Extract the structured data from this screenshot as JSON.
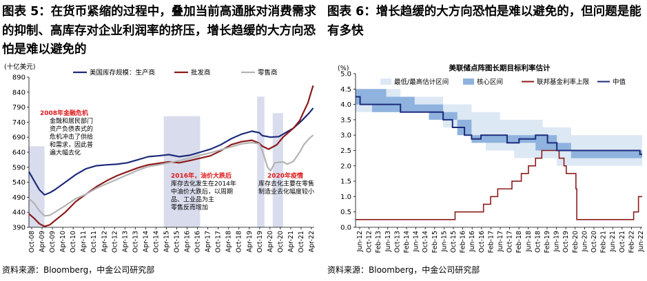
{
  "panels": [
    {
      "title": "图表 5：在货币紧缩的过程中，叠加当前高通胀对消费需求的抑制、高库存对企业利润率的挤压，增长趋缓的大方向恐怕是难以避免的",
      "source": "资料来源：Bloomberg，中金公司研究部"
    },
    {
      "title": "图表 6：增长趋缓的大方向恐怕是难以避免的，但问题是能有多快",
      "source": "资料来源：Bloomberg，中金公司研究部"
    }
  ],
  "colors": {
    "navy": "#1c2a7a",
    "maroon": "#8b1a1a",
    "gray": "#b3b3b3",
    "shade": "#d9dcec",
    "lightBand": "#dde8f5",
    "darkBand": "#8fb3de",
    "red": "#e0191b"
  },
  "chart_data": [
    {
      "type": "line",
      "ylabel": "(十亿美元)",
      "ylim": [
        390,
        890
      ],
      "yticks": [
        390,
        440,
        490,
        540,
        590,
        640,
        690,
        740,
        790,
        840,
        890
      ],
      "xticks": [
        "Oct-08",
        "Apr-09",
        "Oct-09",
        "Apr-10",
        "Oct-10",
        "Apr-11",
        "Oct-11",
        "Apr-12",
        "Oct-12",
        "Apr-13",
        "Oct-13",
        "Apr-14",
        "Oct-14",
        "Apr-15",
        "Oct-15",
        "Apr-16",
        "Oct-16",
        "Apr-17",
        "Oct-17",
        "Apr-18",
        "Oct-18",
        "Apr-19",
        "Oct-19",
        "Apr-20",
        "Oct-20",
        "Apr-21",
        "Oct-21",
        "Apr-22"
      ],
      "xlim": [
        2008.75,
        2022.5
      ],
      "shaded_periods": [
        [
          2008.75,
          2009.5
        ],
        [
          2015.25,
          2017.0
        ],
        [
          2019.75,
          2020.1
        ],
        [
          2020.5,
          2021.0
        ]
      ],
      "series": [
        {
          "name": "美国库存规模：生产商",
          "color": "navy",
          "points": [
            [
              2008.75,
              575
            ],
            [
              2009.0,
              545
            ],
            [
              2009.25,
              515
            ],
            [
              2009.5,
              498
            ],
            [
              2009.75,
              505
            ],
            [
              2010.0,
              515
            ],
            [
              2010.5,
              540
            ],
            [
              2011.0,
              565
            ],
            [
              2011.5,
              585
            ],
            [
              2012.0,
              595
            ],
            [
              2012.5,
              598
            ],
            [
              2013.0,
              600
            ],
            [
              2013.5,
              605
            ],
            [
              2014.0,
              615
            ],
            [
              2014.5,
              625
            ],
            [
              2015.0,
              628
            ],
            [
              2015.5,
              632
            ],
            [
              2016.0,
              625
            ],
            [
              2016.5,
              630
            ],
            [
              2017.0,
              640
            ],
            [
              2017.5,
              650
            ],
            [
              2018.0,
              665
            ],
            [
              2018.5,
              685
            ],
            [
              2019.0,
              700
            ],
            [
              2019.5,
              710
            ],
            [
              2019.85,
              705
            ],
            [
              2020.0,
              695
            ],
            [
              2020.4,
              690
            ],
            [
              2020.8,
              692
            ],
            [
              2021.0,
              700
            ],
            [
              2021.5,
              720
            ],
            [
              2021.9,
              745
            ],
            [
              2022.25,
              770
            ],
            [
              2022.45,
              787
            ]
          ]
        },
        {
          "name": "批发商",
          "color": "maroon",
          "points": [
            [
              2008.75,
              435
            ],
            [
              2009.0,
              420
            ],
            [
              2009.25,
              402
            ],
            [
              2009.5,
              393
            ],
            [
              2009.75,
              398
            ],
            [
              2010.0,
              412
            ],
            [
              2010.5,
              440
            ],
            [
              2011.0,
              475
            ],
            [
              2011.5,
              500
            ],
            [
              2012.0,
              525
            ],
            [
              2012.5,
              545
            ],
            [
              2013.0,
              562
            ],
            [
              2013.5,
              575
            ],
            [
              2014.0,
              588
            ],
            [
              2014.5,
              598
            ],
            [
              2015.0,
              603
            ],
            [
              2015.5,
              608
            ],
            [
              2016.0,
              605
            ],
            [
              2016.5,
              612
            ],
            [
              2017.0,
              620
            ],
            [
              2017.5,
              628
            ],
            [
              2018.0,
              645
            ],
            [
              2018.5,
              665
            ],
            [
              2019.0,
              675
            ],
            [
              2019.5,
              680
            ],
            [
              2019.85,
              670
            ],
            [
              2020.0,
              660
            ],
            [
              2020.3,
              650
            ],
            [
              2020.7,
              665
            ],
            [
              2021.0,
              690
            ],
            [
              2021.5,
              720
            ],
            [
              2021.8,
              745
            ],
            [
              2022.0,
              775
            ],
            [
              2022.2,
              805
            ],
            [
              2022.35,
              840
            ],
            [
              2022.45,
              862
            ]
          ]
        },
        {
          "name": "零售商",
          "color": "gray",
          "points": [
            [
              2008.75,
              485
            ],
            [
              2009.0,
              470
            ],
            [
              2009.25,
              445
            ],
            [
              2009.5,
              428
            ],
            [
              2009.75,
              430
            ],
            [
              2010.0,
              440
            ],
            [
              2010.5,
              462
            ],
            [
              2011.0,
              485
            ],
            [
              2011.5,
              500
            ],
            [
              2012.0,
              520
            ],
            [
              2012.5,
              535
            ],
            [
              2013.0,
              550
            ],
            [
              2013.5,
              565
            ],
            [
              2014.0,
              580
            ],
            [
              2014.5,
              592
            ],
            [
              2015.0,
              598
            ],
            [
              2015.5,
              605
            ],
            [
              2016.0,
              612
            ],
            [
              2016.5,
              620
            ],
            [
              2017.0,
              630
            ],
            [
              2017.5,
              638
            ],
            [
              2018.0,
              648
            ],
            [
              2018.5,
              658
            ],
            [
              2019.0,
              668
            ],
            [
              2019.5,
              672
            ],
            [
              2019.85,
              668
            ],
            [
              2020.0,
              645
            ],
            [
              2020.25,
              590
            ],
            [
              2020.4,
              578
            ],
            [
              2020.6,
              605
            ],
            [
              2021.0,
              608
            ],
            [
              2021.2,
              600
            ],
            [
              2021.5,
              610
            ],
            [
              2021.8,
              640
            ],
            [
              2022.0,
              665
            ],
            [
              2022.25,
              685
            ],
            [
              2022.45,
              697
            ]
          ]
        }
      ],
      "annotations": [
        {
          "title": "2008年金融危机",
          "lines": [
            "金融和居民部门",
            "资产负债表式的",
            "危机冲击了供给",
            "和需求，因此普",
            "遍大幅去化"
          ]
        },
        {
          "title": "2016年，油价大跌后",
          "lines": [
            "库存去化发生在2014年",
            "中油价大跌后，以周期",
            "品、工业品为主",
            "零售反而增加"
          ]
        },
        {
          "title": "2020年疫情",
          "lines": [
            "库存去化主要在零售",
            "制造业去化幅度较小"
          ]
        }
      ]
    },
    {
      "type": "step",
      "title": "美联储点阵图长期目标利率估计",
      "ylabel": "(%)",
      "ylim": [
        0.0,
        5.0
      ],
      "yticks": [
        "0.0",
        "0.5",
        "1.0",
        "1.5",
        "2.0",
        "2.5",
        "3.0",
        "3.5",
        "4.0",
        "4.5",
        "5.0"
      ],
      "xticks": [
        "Jun-12",
        "Oct-12",
        "Feb-13",
        "Jun-13",
        "Oct-13",
        "Feb-14",
        "Jun-14",
        "Oct-14",
        "Feb-15",
        "Jun-15",
        "Oct-15",
        "Feb-16",
        "Jun-16",
        "Oct-16",
        "Feb-17",
        "Jun-17",
        "Oct-17",
        "Feb-18",
        "Jun-18",
        "Oct-18",
        "Feb-19",
        "Jun-19",
        "Oct-19",
        "Feb-20",
        "Jun-20",
        "Oct-20",
        "Feb-21",
        "Jun-21",
        "Oct-21",
        "Feb-22",
        "Jun-22"
      ],
      "xlim": [
        2012.42,
        2022.5
      ],
      "legend": [
        "最低/最高估计区间",
        "核心区间",
        "联邦基金利率上限",
        "中值"
      ],
      "range_steps": [
        [
          2012.42,
          3.75,
          4.5
        ],
        [
          2013.0,
          3.75,
          4.5
        ],
        [
          2014.0,
          3.75,
          4.25
        ],
        [
          2015.0,
          3.5,
          4.25
        ],
        [
          2015.5,
          3.25,
          4.0
        ],
        [
          2016.0,
          3.0,
          4.0
        ],
        [
          2016.5,
          2.75,
          3.75
        ],
        [
          2017.0,
          2.5,
          3.75
        ],
        [
          2017.5,
          2.5,
          3.5
        ],
        [
          2018.0,
          2.25,
          3.5
        ],
        [
          2019.0,
          2.25,
          3.25
        ],
        [
          2019.5,
          2.0,
          3.25
        ],
        [
          2020.0,
          2.0,
          3.0
        ],
        [
          2022.5,
          2.0,
          3.0
        ]
      ],
      "core_steps": [
        [
          2012.42,
          4.0,
          4.5
        ],
        [
          2013.0,
          3.75,
          4.5
        ],
        [
          2013.5,
          3.75,
          4.25
        ],
        [
          2014.5,
          3.75,
          4.0
        ],
        [
          2015.0,
          3.5,
          4.0
        ],
        [
          2015.5,
          3.5,
          3.75
        ],
        [
          2016.0,
          3.0,
          3.5
        ],
        [
          2016.5,
          2.75,
          3.0
        ],
        [
          2017.0,
          2.75,
          3.0
        ],
        [
          2018.0,
          2.75,
          3.0
        ],
        [
          2018.75,
          2.5,
          3.0
        ],
        [
          2019.0,
          2.5,
          3.0
        ],
        [
          2019.5,
          2.5,
          2.75
        ],
        [
          2020.0,
          2.25,
          2.5
        ],
        [
          2022.0,
          2.25,
          2.5
        ],
        [
          2022.5,
          2.25,
          2.5
        ]
      ],
      "median": [
        [
          2012.42,
          4.25
        ],
        [
          2012.58,
          4.0
        ],
        [
          2013.5,
          4.0
        ],
        [
          2014.0,
          3.75
        ],
        [
          2015.25,
          3.75
        ],
        [
          2015.5,
          3.5
        ],
        [
          2015.83,
          3.25
        ],
        [
          2016.25,
          3.0
        ],
        [
          2016.5,
          2.875
        ],
        [
          2016.83,
          3.0
        ],
        [
          2017.5,
          3.0
        ],
        [
          2017.75,
          2.75
        ],
        [
          2018.17,
          2.875
        ],
        [
          2018.75,
          3.0
        ],
        [
          2019.17,
          2.75
        ],
        [
          2019.5,
          2.5
        ],
        [
          2022.25,
          2.5
        ],
        [
          2022.42,
          2.375
        ],
        [
          2022.5,
          2.375
        ]
      ],
      "fed_funds_upper": [
        [
          2012.42,
          0.25
        ],
        [
          2015.92,
          0.5
        ],
        [
          2016.92,
          0.75
        ],
        [
          2017.17,
          1.0
        ],
        [
          2017.42,
          1.25
        ],
        [
          2017.92,
          1.5
        ],
        [
          2018.25,
          1.75
        ],
        [
          2018.5,
          2.0
        ],
        [
          2018.75,
          2.25
        ],
        [
          2018.97,
          2.5
        ],
        [
          2019.58,
          2.25
        ],
        [
          2019.75,
          2.0
        ],
        [
          2019.83,
          1.75
        ],
        [
          2020.17,
          1.25
        ],
        [
          2020.2,
          0.25
        ],
        [
          2022.2,
          0.5
        ],
        [
          2022.37,
          1.0
        ],
        [
          2022.5,
          1.0
        ]
      ]
    }
  ]
}
